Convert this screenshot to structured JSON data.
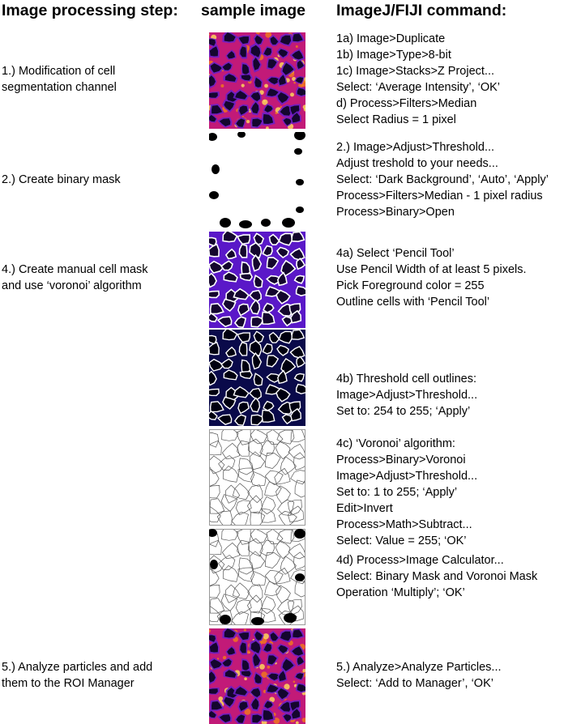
{
  "headers": {
    "step": "Image processing step:",
    "sample": "sample image",
    "command": "ImageJ/FIJI command:"
  },
  "steps": [
    {
      "lines": [
        "1.) Modification of cell",
        "segmentation channel"
      ]
    },
    {
      "lines": [
        "2.) Create binary mask"
      ]
    },
    {
      "lines": [
        "4.) Create manual cell mask",
        "and use ‘voronoi’ algorithm"
      ]
    },
    {
      "lines": [
        "5.) Analyze particles and add",
        "them to the ROI Manager"
      ]
    }
  ],
  "commands": [
    {
      "lines": [
        "1a) Image>Duplicate",
        "1b) Image>Type>8-bit",
        "1c) Image>Stacks>Z Project...",
        "Select: ‘Average Intensity’, ‘OK’",
        "d) Process>Filters>Median",
        "Select Radius = 1 pixel"
      ]
    },
    {
      "lines": [
        "2.) Image>Adjust>Threshold...",
        "Adjust treshold to your needs...",
        "Select: ‘Dark Background’, ‘Auto’, ‘Apply’",
        "Process>Filters>Median - 1 pixel radius",
        "Process>Binary>Open"
      ]
    },
    {
      "lines": [
        "4a) Select ‘Pencil Tool’",
        "Use Pencil Width of at least 5 pixels.",
        "Pick Foreground color = 255",
        "Outline cells with ‘Pencil Tool’"
      ]
    },
    {
      "lines": [
        "4b) Threshold cell outlines:",
        "Image>Adjust>Threshold...",
        "Set to: 254 to 255; ‘Apply’"
      ]
    },
    {
      "lines": [
        "4c) ‘Voronoi’ algorithm:",
        "Process>Binary>Voronoi",
        "Image>Adjust>Threshold...",
        "Set to: 1 to 255; ‘Apply’",
        "Edit>Invert",
        "Process>Math>Subtract...",
        "Select: Value = 255; ‘OK’"
      ]
    },
    {
      "lines": [
        "4d) Process>Image Calculator...",
        "Select: Binary Mask and Voronoi Mask",
        "Operation ‘Multiply’; ‘OK’"
      ]
    },
    {
      "lines": [
        "5.) Analyze>Analyze Particles...",
        "Select: ‘Add to Manager’, ‘OK’"
      ]
    }
  ],
  "colors": {
    "fire_dark": "#14062e",
    "fire_purple": "#6a1fc9",
    "fire_magenta": "#c21a78",
    "fire_orange": "#f27c1a",
    "fire_yellow": "#ffe15a",
    "mask_purple": "#5a18c8",
    "outline_navy": "#0a0a4a"
  }
}
